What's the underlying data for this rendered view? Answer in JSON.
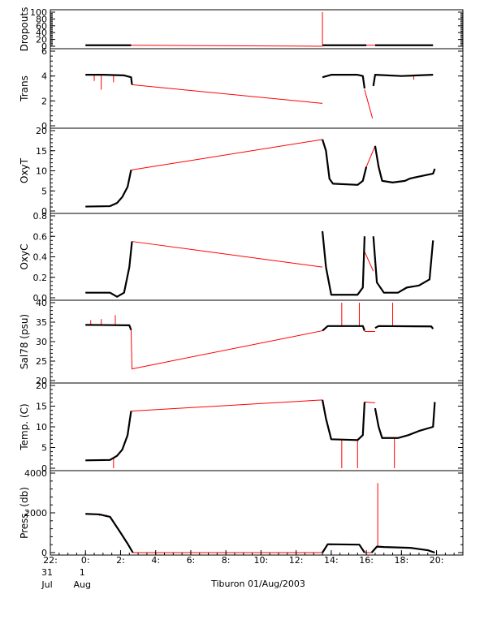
{
  "chart_data": {
    "type": "line",
    "footer_title": "Tiburon 01/Aug/2003",
    "colors": {
      "data": "#000000",
      "gap": "#ff0000",
      "axis": "#000000"
    },
    "x_axis": {
      "range_hours": [
        -2.0,
        21.5
      ],
      "ticks": [
        {
          "h": -2,
          "lines": [
            "22:",
            "31",
            "Jul"
          ]
        },
        {
          "h": 0,
          "lines": [
            "0:",
            "1",
            "Aug"
          ]
        },
        {
          "h": 2,
          "lines": [
            "2:"
          ]
        },
        {
          "h": 4,
          "lines": [
            "4:"
          ]
        },
        {
          "h": 6,
          "lines": [
            "6:"
          ]
        },
        {
          "h": 8,
          "lines": [
            "8:"
          ]
        },
        {
          "h": 10,
          "lines": [
            "10:"
          ]
        },
        {
          "h": 12,
          "lines": [
            "12:"
          ]
        },
        {
          "h": 14,
          "lines": [
            "14:"
          ]
        },
        {
          "h": 16,
          "lines": [
            "16:"
          ]
        },
        {
          "h": 18,
          "lines": [
            "18:"
          ]
        },
        {
          "h": 20,
          "lines": [
            "20:"
          ]
        }
      ]
    },
    "panels": [
      {
        "ylabel": "Dropouts",
        "ylim": [
          0,
          100
        ],
        "ticks": [
          0,
          20,
          40,
          60,
          80,
          100
        ],
        "tick_labels": [
          "0",
          "20",
          "40",
          "60",
          "80",
          "100"
        ],
        "segments": [
          [
            [
              0.0,
              3
            ],
            [
              2.6,
              3
            ]
          ],
          [
            [
              13.5,
              3
            ],
            [
              16.0,
              3
            ]
          ],
          [
            [
              16.5,
              3
            ],
            [
              19.8,
              3
            ]
          ]
        ],
        "gaps": [
          [
            [
              2.6,
              3
            ],
            [
              13.5,
              0
            ]
          ],
          [
            [
              16.0,
              3
            ],
            [
              16.5,
              3
            ]
          ]
        ],
        "spikes": [
          {
            "x": 13.5,
            "y": 100
          }
        ]
      },
      {
        "ylabel": "Trans",
        "ylim": [
          0,
          6
        ],
        "ticks": [
          0,
          2,
          4,
          6
        ],
        "tick_labels": [
          "0",
          "2",
          "4",
          "6"
        ],
        "segments": [
          [
            [
              0.0,
              4.1
            ],
            [
              1.0,
              4.1
            ],
            [
              2.2,
              4.05
            ],
            [
              2.6,
              3.9
            ],
            [
              2.65,
              3.3
            ]
          ],
          [
            [
              13.5,
              3.9
            ],
            [
              14.0,
              4.1
            ],
            [
              15.5,
              4.1
            ],
            [
              15.8,
              4.0
            ],
            [
              15.9,
              3.0
            ]
          ],
          [
            [
              16.4,
              3.2
            ],
            [
              16.5,
              4.1
            ],
            [
              18.0,
              4.0
            ],
            [
              19.8,
              4.1
            ]
          ]
        ],
        "gaps": [
          [
            [
              2.65,
              3.3
            ],
            [
              13.5,
              1.8
            ]
          ],
          [
            [
              15.9,
              2.9
            ],
            [
              16.35,
              0.6
            ]
          ]
        ],
        "spikes": [
          {
            "x": 0.5,
            "y": 3.6
          },
          {
            "x": 0.9,
            "y": 2.9
          },
          {
            "x": 1.6,
            "y": 3.5
          },
          {
            "x": 18.7,
            "y": 3.7
          }
        ]
      },
      {
        "ylabel": "OxyT",
        "ylim": [
          0,
          20
        ],
        "ticks": [
          0,
          5,
          10,
          15,
          20
        ],
        "tick_labels": [
          "0",
          "5",
          "10",
          "15",
          "20"
        ],
        "segments": [
          [
            [
              0.0,
              1.1
            ],
            [
              1.4,
              1.2
            ],
            [
              1.8,
              2.0
            ],
            [
              2.1,
              3.5
            ],
            [
              2.4,
              6.0
            ],
            [
              2.6,
              10.2
            ]
          ],
          [
            [
              13.5,
              17.8
            ],
            [
              13.7,
              15.0
            ],
            [
              13.9,
              8.0
            ],
            [
              14.1,
              6.8
            ],
            [
              15.5,
              6.5
            ],
            [
              15.8,
              7.5
            ],
            [
              16.0,
              11.0
            ]
          ],
          [
            [
              16.5,
              16.2
            ],
            [
              16.7,
              11.0
            ],
            [
              16.9,
              7.5
            ],
            [
              17.5,
              7.1
            ],
            [
              18.2,
              7.5
            ],
            [
              18.5,
              8.1
            ],
            [
              19.8,
              9.3
            ],
            [
              19.9,
              10.5
            ]
          ]
        ],
        "gaps": [
          [
            [
              2.6,
              10.2
            ],
            [
              13.5,
              17.8
            ]
          ],
          [
            [
              16.0,
              11.0
            ],
            [
              16.5,
              16.2
            ]
          ]
        ],
        "spikes": []
      },
      {
        "ylabel": "OxyC",
        "ylim": [
          0,
          0.8
        ],
        "ticks": [
          0,
          0.2,
          0.4,
          0.6,
          0.8
        ],
        "tick_labels": [
          "0.0",
          "0.2",
          "0.4",
          "0.6",
          "0.8"
        ],
        "segments": [
          [
            [
              0.0,
              0.05
            ],
            [
              1.4,
              0.05
            ],
            [
              1.8,
              0.01
            ],
            [
              2.2,
              0.05
            ],
            [
              2.5,
              0.3
            ],
            [
              2.65,
              0.55
            ]
          ],
          [
            [
              13.5,
              0.65
            ],
            [
              13.7,
              0.3
            ],
            [
              14.0,
              0.03
            ],
            [
              15.5,
              0.03
            ],
            [
              15.8,
              0.1
            ],
            [
              15.9,
              0.6
            ]
          ],
          [
            [
              16.4,
              0.6
            ],
            [
              16.6,
              0.15
            ],
            [
              17.0,
              0.05
            ],
            [
              17.8,
              0.05
            ],
            [
              18.3,
              0.1
            ],
            [
              19.0,
              0.12
            ],
            [
              19.6,
              0.18
            ],
            [
              19.8,
              0.56
            ]
          ]
        ],
        "gaps": [
          [
            [
              2.65,
              0.55
            ],
            [
              13.5,
              0.3
            ]
          ],
          [
            [
              15.9,
              0.45
            ],
            [
              16.4,
              0.26
            ]
          ]
        ],
        "spikes": []
      },
      {
        "ylabel": "Sal78 (psu)",
        "ylim": [
          20,
          40
        ],
        "ticks": [
          20,
          25,
          30,
          35,
          40
        ],
        "tick_labels": [
          "20",
          "25",
          "30",
          "35",
          "40"
        ],
        "segments": [
          [
            [
              0.0,
              34.3
            ],
            [
              2.5,
              34.2
            ],
            [
              2.6,
              33.0
            ]
          ],
          [
            [
              13.5,
              32.8
            ],
            [
              13.8,
              34.0
            ],
            [
              15.8,
              34.0
            ],
            [
              15.9,
              32.8
            ]
          ],
          [
            [
              16.5,
              33.5
            ],
            [
              16.7,
              34.0
            ],
            [
              19.7,
              33.9
            ],
            [
              19.8,
              33.3
            ]
          ]
        ],
        "gaps": [
          [
            [
              2.6,
              33.0
            ],
            [
              2.65,
              23.0
            ],
            [
              13.5,
              32.8
            ]
          ],
          [
            [
              15.9,
              32.6
            ],
            [
              16.5,
              32.6
            ]
          ]
        ],
        "spikes": [
          {
            "x": 0.3,
            "y": 35.5
          },
          {
            "x": 0.9,
            "y": 35.8
          },
          {
            "x": 1.7,
            "y": 36.8
          },
          {
            "x": 14.6,
            "y": 40.0
          },
          {
            "x": 15.6,
            "y": 40.0
          },
          {
            "x": 17.5,
            "y": 40.0
          }
        ]
      },
      {
        "ylabel": "Temp. (C)",
        "ylim": [
          0,
          20
        ],
        "ticks": [
          0,
          5,
          10,
          15,
          20
        ],
        "tick_labels": [
          "0",
          "5",
          "10",
          "15",
          "20"
        ],
        "segments": [
          [
            [
              0.0,
              1.9
            ],
            [
              1.4,
              2.0
            ],
            [
              1.8,
              3.0
            ],
            [
              2.1,
              4.5
            ],
            [
              2.4,
              8.0
            ],
            [
              2.6,
              13.8
            ]
          ],
          [
            [
              13.5,
              16.5
            ],
            [
              13.7,
              12.0
            ],
            [
              14.0,
              7.0
            ],
            [
              15.5,
              6.8
            ],
            [
              15.8,
              8.0
            ],
            [
              15.9,
              16.0
            ]
          ],
          [
            [
              16.5,
              14.5
            ],
            [
              16.7,
              10.0
            ],
            [
              16.9,
              7.3
            ],
            [
              17.8,
              7.3
            ],
            [
              18.4,
              8.0
            ],
            [
              19.0,
              9.0
            ],
            [
              19.8,
              10.0
            ],
            [
              19.9,
              16.0
            ]
          ]
        ],
        "gaps": [
          [
            [
              2.6,
              13.8
            ],
            [
              13.5,
              16.5
            ]
          ],
          [
            [
              15.9,
              16.0
            ],
            [
              16.5,
              15.8
            ]
          ]
        ],
        "spikes": [
          {
            "x": 1.6,
            "y": 0.0
          },
          {
            "x": 14.6,
            "y": 0.0
          },
          {
            "x": 15.5,
            "y": 0.0
          },
          {
            "x": 17.6,
            "y": 0.0
          }
        ]
      },
      {
        "ylabel": "Press. (db)",
        "ylim": [
          0,
          4000
        ],
        "ticks": [
          0,
          2000,
          4000
        ],
        "tick_labels": [
          "0",
          "2000",
          "4000"
        ],
        "segments": [
          [
            [
              0.0,
              1950
            ],
            [
              0.8,
              1920
            ],
            [
              1.4,
              1800
            ],
            [
              2.0,
              1000
            ],
            [
              2.4,
              450
            ],
            [
              2.7,
              0
            ]
          ],
          [
            [
              13.5,
              0
            ],
            [
              13.8,
              420
            ],
            [
              15.6,
              400
            ],
            [
              15.9,
              0
            ]
          ],
          [
            [
              16.3,
              0
            ],
            [
              16.6,
              300
            ],
            [
              17.0,
              280
            ],
            [
              18.5,
              240
            ],
            [
              19.5,
              120
            ],
            [
              19.9,
              0
            ]
          ]
        ],
        "gaps": [
          [
            [
              2.7,
              0
            ],
            [
              13.5,
              0
            ]
          ],
          [
            [
              15.9,
              0
            ],
            [
              16.3,
              0
            ]
          ]
        ],
        "spikes": [
          {
            "x": 0.15,
            "y": 1950
          },
          {
            "x": 0.8,
            "y": 1850
          },
          {
            "x": 1.2,
            "y": 1900
          },
          {
            "x": 14.6,
            "y": 420
          },
          {
            "x": 15.4,
            "y": 420
          },
          {
            "x": 16.65,
            "y": 3500
          },
          {
            "x": 17.3,
            "y": 280
          },
          {
            "x": 17.9,
            "y": 250
          }
        ]
      }
    ]
  }
}
